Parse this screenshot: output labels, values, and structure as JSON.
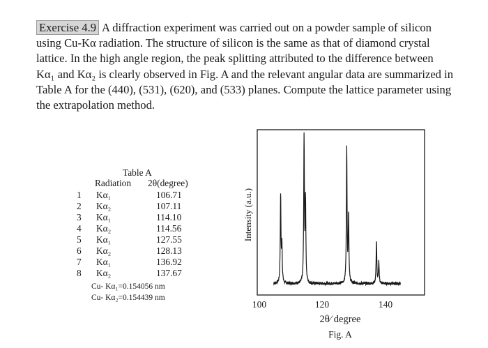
{
  "problem": {
    "label": "Exercise 4.9",
    "text": "A diffraction experiment was carried out on a powder sample of silicon using Cu-Kα radiation. The structure of silicon is the same as that of diamond crystal lattice. In the high angle region, the peak splitting attributed to the difference between Kα₁ and Kα₂ is clearly observed in Fig. A and the relevant angular data are summarized in Table A for the (440), (531), (620), and (533) planes. Compute the lattice parameter using the extrapolation method."
  },
  "table": {
    "title": "Table A",
    "headers": [
      "Radiation",
      "2θ(degree)"
    ],
    "rows": [
      {
        "num": "1",
        "radiation": "Kα₁",
        "two_theta": "106.71"
      },
      {
        "num": "2",
        "radiation": "Kα₂",
        "two_theta": "107.11"
      },
      {
        "num": "3",
        "radiation": "Kα₁",
        "two_theta": "114.10"
      },
      {
        "num": "4",
        "radiation": "Kα₂",
        "two_theta": "114.56"
      },
      {
        "num": "5",
        "radiation": "Kα₁",
        "two_theta": "127.55"
      },
      {
        "num": "6",
        "radiation": "Kα₂",
        "two_theta": "128.13"
      },
      {
        "num": "7",
        "radiation": "Kα₁",
        "two_theta": "136.92"
      },
      {
        "num": "8",
        "radiation": "Kα₂",
        "two_theta": "137.67"
      }
    ],
    "notes": [
      "Cu- Kα₁=0.154056 nm",
      "Cu- Kα₂=0.154439 nm"
    ]
  },
  "figure": {
    "ylabel": "Intensity (a.u.)",
    "xlabel": "2θ⁄ degree",
    "caption": "Fig. A",
    "ticks": [
      "100",
      "120",
      "140"
    ]
  },
  "chart_data": {
    "type": "line",
    "title": "",
    "xlabel": "2θ⁄ degree",
    "ylabel": "Intensity (a.u.)",
    "xlim": [
      100,
      145
    ],
    "ylim": [
      0,
      1.0
    ],
    "x_ticks": [
      100,
      120,
      140
    ],
    "series": [
      {
        "peaks": [
          {
            "two_theta": 106.71,
            "intensity": 0.6
          },
          {
            "two_theta": 107.11,
            "intensity": 0.26
          },
          {
            "two_theta": 114.1,
            "intensity": 1.0
          },
          {
            "two_theta": 114.56,
            "intensity": 0.55
          },
          {
            "two_theta": 127.55,
            "intensity": 0.93
          },
          {
            "two_theta": 128.13,
            "intensity": 0.46
          },
          {
            "two_theta": 136.92,
            "intensity": 0.29
          },
          {
            "two_theta": 137.67,
            "intensity": 0.15
          }
        ],
        "baseline": 0.04
      }
    ]
  }
}
